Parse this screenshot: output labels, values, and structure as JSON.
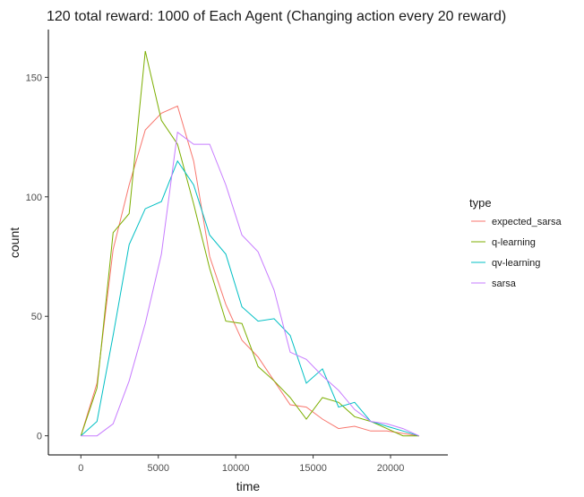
{
  "chart_data": {
    "type": "line",
    "title": "120 total reward: 1000 of Each Agent  (Changing action every 20 reward)",
    "xlabel": "time",
    "ylabel": "count",
    "xlim": [
      -2100,
      23700
    ],
    "ylim": [
      -8,
      170
    ],
    "x_ticks": [
      0,
      5000,
      10000,
      15000,
      20000
    ],
    "x_tick_labels": [
      "0",
      "5000",
      "10000",
      "15000",
      "20000"
    ],
    "y_ticks": [
      0,
      50,
      100,
      150
    ],
    "y_tick_labels": [
      "0",
      "50",
      "100",
      "150"
    ],
    "grid": false,
    "legend": {
      "title": "type",
      "placement": "right"
    },
    "x": [
      0,
      1040,
      2080,
      3120,
      4160,
      5200,
      6240,
      7280,
      8320,
      9360,
      10400,
      11440,
      12480,
      13520,
      14560,
      15600,
      16640,
      17680,
      18720,
      19760,
      20800,
      21840
    ],
    "series": [
      {
        "name": "expected_sarsa",
        "color": "#F8766D",
        "values": [
          0,
          22,
          78,
          105,
          128,
          135,
          138,
          115,
          75,
          55,
          40,
          33,
          23,
          13,
          12,
          7,
          3,
          4,
          2,
          2,
          1,
          0
        ]
      },
      {
        "name": "q-learning",
        "color": "#7CAE00",
        "values": [
          0,
          20,
          85,
          93,
          161,
          132,
          122,
          97,
          70,
          48,
          47,
          29,
          23,
          16,
          7,
          16,
          14,
          8,
          6,
          3,
          0,
          0
        ]
      },
      {
        "name": "qv-learning",
        "color": "#00BFC4",
        "values": [
          0,
          6,
          42,
          80,
          95,
          98,
          115,
          105,
          84,
          76,
          54,
          48,
          49,
          42,
          22,
          28,
          12,
          14,
          6,
          4,
          2,
          0
        ]
      },
      {
        "name": "sarsa",
        "color": "#C77CFF",
        "values": [
          0,
          0,
          5,
          23,
          47,
          76,
          127,
          122,
          122,
          105,
          84,
          77,
          61,
          35,
          32,
          25,
          19,
          11,
          6,
          5,
          3,
          0
        ]
      }
    ]
  }
}
